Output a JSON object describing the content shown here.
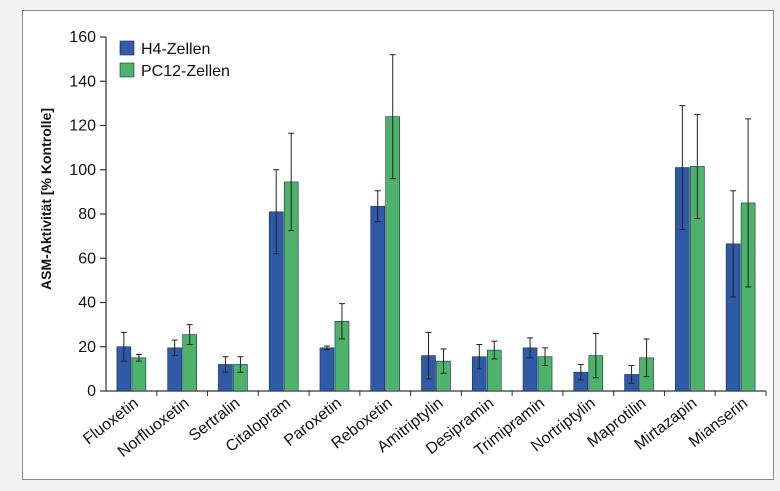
{
  "chart_data": {
    "type": "bar",
    "title": "",
    "xlabel": "",
    "ylabel": "ASM-Aktivität [% Kontrolle]",
    "ylim": [
      0,
      160
    ],
    "yticks": [
      0,
      20,
      40,
      60,
      80,
      100,
      120,
      140,
      160
    ],
    "grid": false,
    "legend_position": "top-left",
    "categories": [
      "Fluoxetin",
      "Norfluoxetin",
      "Sertralin",
      "Citalopram",
      "Paroxetin",
      "Reboxetin",
      "Amitriptylin",
      "Desipramin",
      "Trimipramin",
      "Nortriptylin",
      "Maprotilin",
      "Mirtazapin",
      "Mianserin"
    ],
    "series": [
      {
        "name": "H4-Zellen",
        "color": "#2f5aa8",
        "values": [
          20,
          19.5,
          12,
          81,
          19.5,
          83.5,
          16,
          15.5,
          19.5,
          8.5,
          7.5,
          101,
          66.5
        ],
        "errors": [
          6.5,
          3.5,
          3.5,
          19,
          0.8,
          7,
          10.5,
          5.5,
          4.5,
          3.5,
          4,
          28,
          24
        ]
      },
      {
        "name": "PC12-Zellen",
        "color": "#4db36a",
        "values": [
          15,
          25.5,
          12,
          94.5,
          31.5,
          124,
          13.5,
          18.5,
          15.5,
          16,
          15,
          101.5,
          85
        ],
        "errors": [
          1.5,
          4.5,
          3.5,
          22,
          8,
          28,
          5.5,
          4,
          4,
          10,
          8.5,
          23.5,
          38
        ]
      }
    ]
  }
}
